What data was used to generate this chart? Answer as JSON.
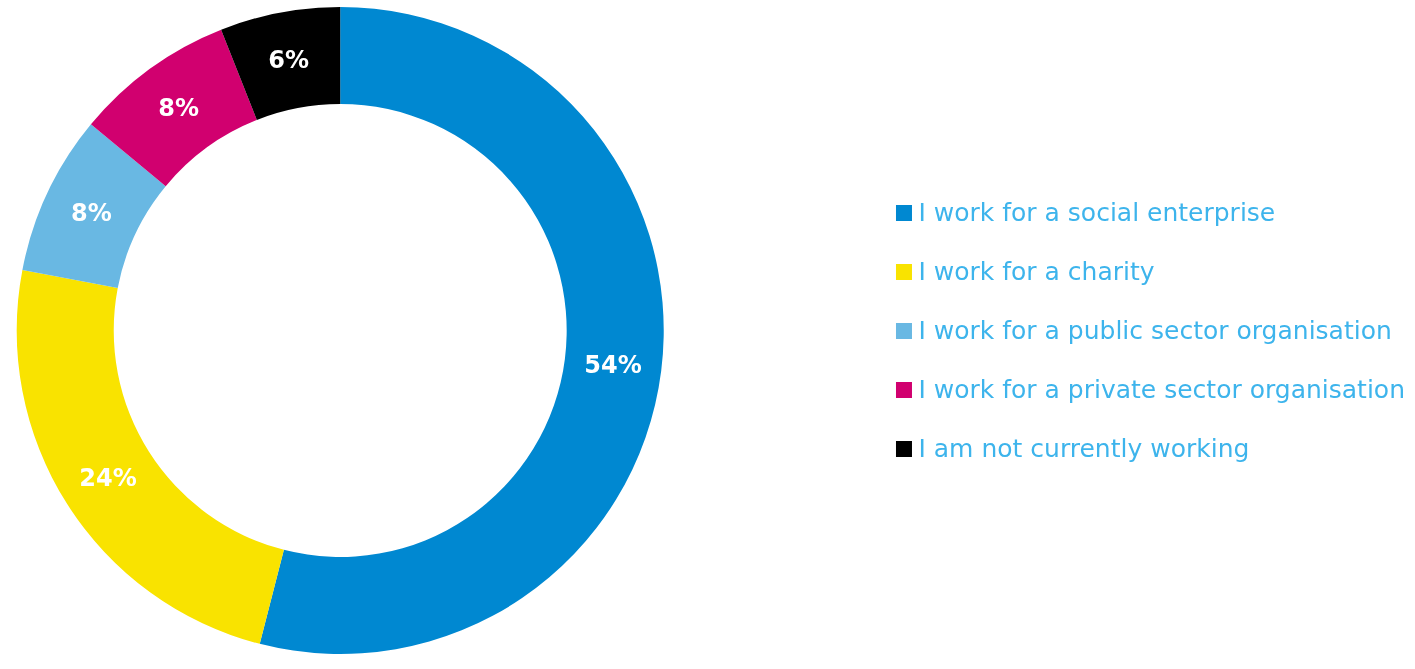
{
  "chart_data": {
    "type": "donut",
    "categories": [
      "I work for a social enterprise",
      "I work for a charity",
      "I work for a public sector organisation",
      "I work for a private sector organisation",
      "I am not currently working"
    ],
    "values": [
      54,
      24,
      8,
      8,
      6
    ],
    "colors": [
      "#0088d1",
      "#f9e300",
      "#69b8e3",
      "#d1006f",
      "#000000"
    ],
    "value_labels": [
      "54%",
      "24%",
      "8%",
      "8%",
      "6%"
    ],
    "legend": "right"
  }
}
